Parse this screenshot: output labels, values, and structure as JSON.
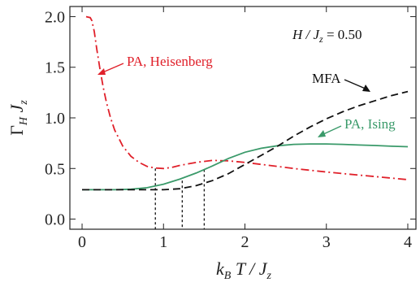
{
  "chart_data": {
    "type": "line",
    "xlim": [
      -0.15,
      4.1
    ],
    "ylim": [
      -0.1,
      2.1
    ],
    "xticks": [
      "0",
      "1",
      "2",
      "3",
      "4"
    ],
    "xtick_values": [
      0,
      1,
      2,
      3,
      4
    ],
    "yticks": [
      "0.0",
      "0.5",
      "1.0",
      "1.5",
      "2.0"
    ],
    "ytick_values": [
      0.0,
      0.5,
      1.0,
      1.5,
      2.0
    ],
    "xlabel_main": "k",
    "xlabel_sub": "B",
    "xlabel_rest": " T / J",
    "xlabel_sub2": "z",
    "ylabel_main": "Γ",
    "ylabel_sub": "H",
    "ylabel_rest": " J",
    "ylabel_sub2": "z",
    "param_label": "H / J",
    "param_sub": "z",
    "param_value": " = 0.50",
    "series": [
      {
        "name": "PA, Heisenberg",
        "color": "#e0202a",
        "dash": "10,4,2,4",
        "x": [
          0.05,
          0.1,
          0.12,
          0.15,
          0.18,
          0.22,
          0.26,
          0.3,
          0.35,
          0.4,
          0.5,
          0.6,
          0.7,
          0.8,
          0.9,
          1.0,
          1.1,
          1.2,
          1.4,
          1.6,
          1.8,
          2.0,
          2.3,
          2.6,
          3.0,
          3.4,
          3.8,
          4.0
        ],
        "y": [
          2.0,
          1.99,
          1.96,
          1.85,
          1.68,
          1.48,
          1.3,
          1.15,
          1.0,
          0.88,
          0.72,
          0.62,
          0.56,
          0.52,
          0.505,
          0.5,
          0.51,
          0.53,
          0.56,
          0.58,
          0.575,
          0.56,
          0.53,
          0.5,
          0.465,
          0.435,
          0.405,
          0.39
        ]
      },
      {
        "name": "PA, Ising",
        "color": "#3a9a6a",
        "dash": "",
        "x": [
          0.0,
          0.2,
          0.4,
          0.6,
          0.8,
          1.0,
          1.2,
          1.4,
          1.6,
          1.8,
          2.0,
          2.2,
          2.4,
          2.6,
          2.8,
          3.0,
          3.2,
          3.4,
          3.6,
          3.8,
          4.0
        ],
        "y": [
          0.29,
          0.29,
          0.29,
          0.295,
          0.31,
          0.345,
          0.395,
          0.455,
          0.525,
          0.6,
          0.66,
          0.7,
          0.725,
          0.738,
          0.742,
          0.742,
          0.738,
          0.732,
          0.727,
          0.72,
          0.715
        ]
      },
      {
        "name": "MFA",
        "color": "#111111",
        "dash": "9,5",
        "x": [
          0.0,
          0.5,
          1.0,
          1.2,
          1.4,
          1.6,
          1.8,
          2.0,
          2.2,
          2.4,
          2.6,
          2.8,
          3.0,
          3.2,
          3.4,
          3.6,
          3.8,
          4.0
        ],
        "y": [
          0.29,
          0.29,
          0.29,
          0.3,
          0.33,
          0.38,
          0.45,
          0.54,
          0.63,
          0.72,
          0.82,
          0.91,
          0.99,
          1.06,
          1.12,
          1.17,
          1.22,
          1.26
        ]
      }
    ],
    "drop_lines_x": [
      0.9,
      1.23,
      1.5
    ],
    "drop_lines_y": [
      0.5,
      0.38,
      0.49
    ],
    "annotations": [
      {
        "text": "PA, Heisenberg",
        "color": "#e0202a"
      },
      {
        "text": "MFA",
        "color": "#111111"
      },
      {
        "text": "PA, Ising",
        "color": "#3a9a6a"
      }
    ],
    "legend": "none",
    "grid": false
  }
}
